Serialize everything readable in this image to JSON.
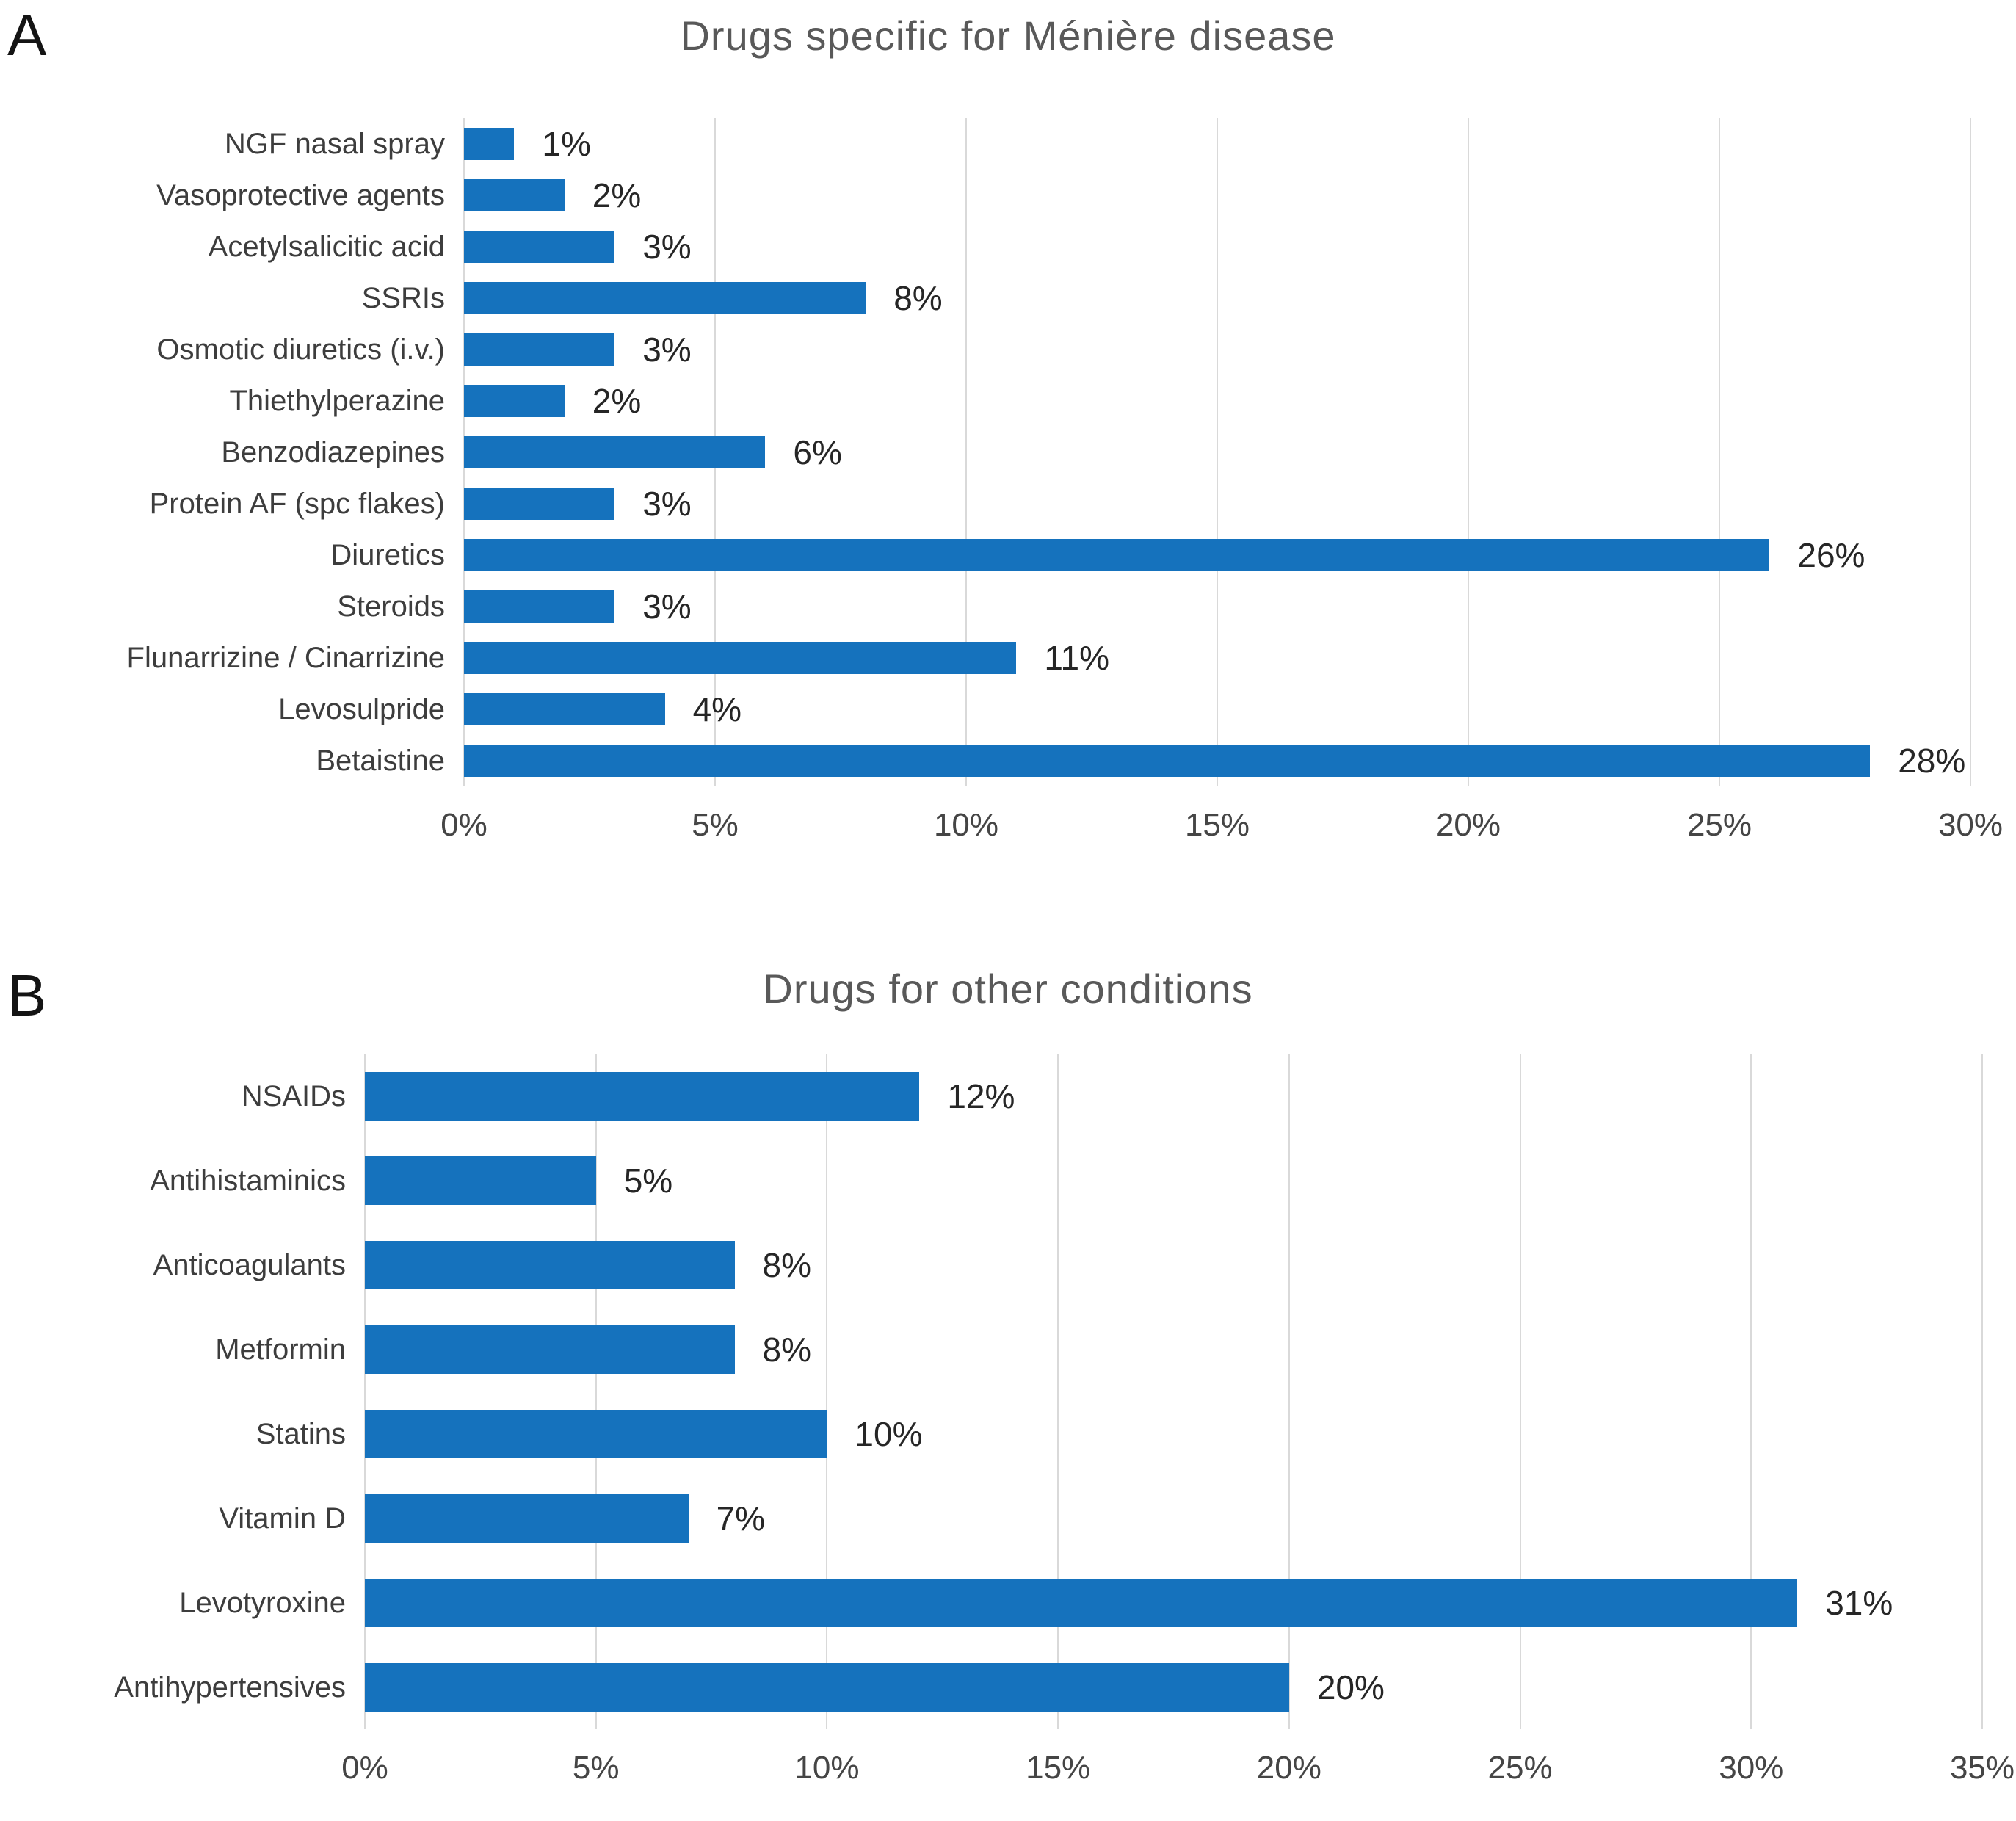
{
  "style": {
    "bar_color": "#1572bd",
    "grid_color": "#d9d9d9",
    "title_color": "#595959",
    "category_color": "#3d3d3d",
    "value_color": "#262626",
    "tick_color": "#454545",
    "background": "#ffffff"
  },
  "chart_data": [
    {
      "type": "bar",
      "orientation": "horizontal",
      "panel_label": "A",
      "title": "Drugs specific for Ménière disease",
      "categories": [
        "NGF nasal spray",
        "Vasoprotective agents",
        "Acetylsalicitic acid",
        "SSRIs",
        "Osmotic diuretics (i.v.)",
        "Thiethylperazine",
        "Benzodiazepines",
        "Protein AF (spc flakes)",
        "Diuretics",
        "Steroids",
        "Flunarrizine / Cinarrizine",
        "Levosulpride",
        "Betaistine"
      ],
      "values": [
        1,
        2,
        3,
        8,
        3,
        2,
        6,
        3,
        26,
        3,
        11,
        4,
        28
      ],
      "value_labels": [
        "1%",
        "2%",
        "3%",
        "8%",
        "3%",
        "2%",
        "6%",
        "3%",
        "26%",
        "3%",
        "11%",
        "4%",
        "28%"
      ],
      "xlim": [
        0,
        30
      ],
      "x_ticks": [
        "0%",
        "5%",
        "10%",
        "15%",
        "20%",
        "25%",
        "30%"
      ],
      "xlabel": "",
      "ylabel": "",
      "grid": true,
      "legend": false
    },
    {
      "type": "bar",
      "orientation": "horizontal",
      "panel_label": "B",
      "title": "Drugs for other conditions",
      "categories": [
        "NSAIDs",
        "Antihistaminics",
        "Anticoagulants",
        "Metformin",
        "Statins",
        "Vitamin D",
        "Levotyroxine",
        "Antihypertensives"
      ],
      "values": [
        12,
        5,
        8,
        8,
        10,
        7,
        31,
        20
      ],
      "value_labels": [
        "12%",
        "5%",
        "8%",
        "8%",
        "10%",
        "7%",
        "31%",
        "20%"
      ],
      "xlim": [
        0,
        35
      ],
      "x_ticks": [
        "0%",
        "5%",
        "10%",
        "15%",
        "20%",
        "25%",
        "30%",
        "35%"
      ],
      "xlabel": "",
      "ylabel": "",
      "grid": true,
      "legend": false
    }
  ]
}
